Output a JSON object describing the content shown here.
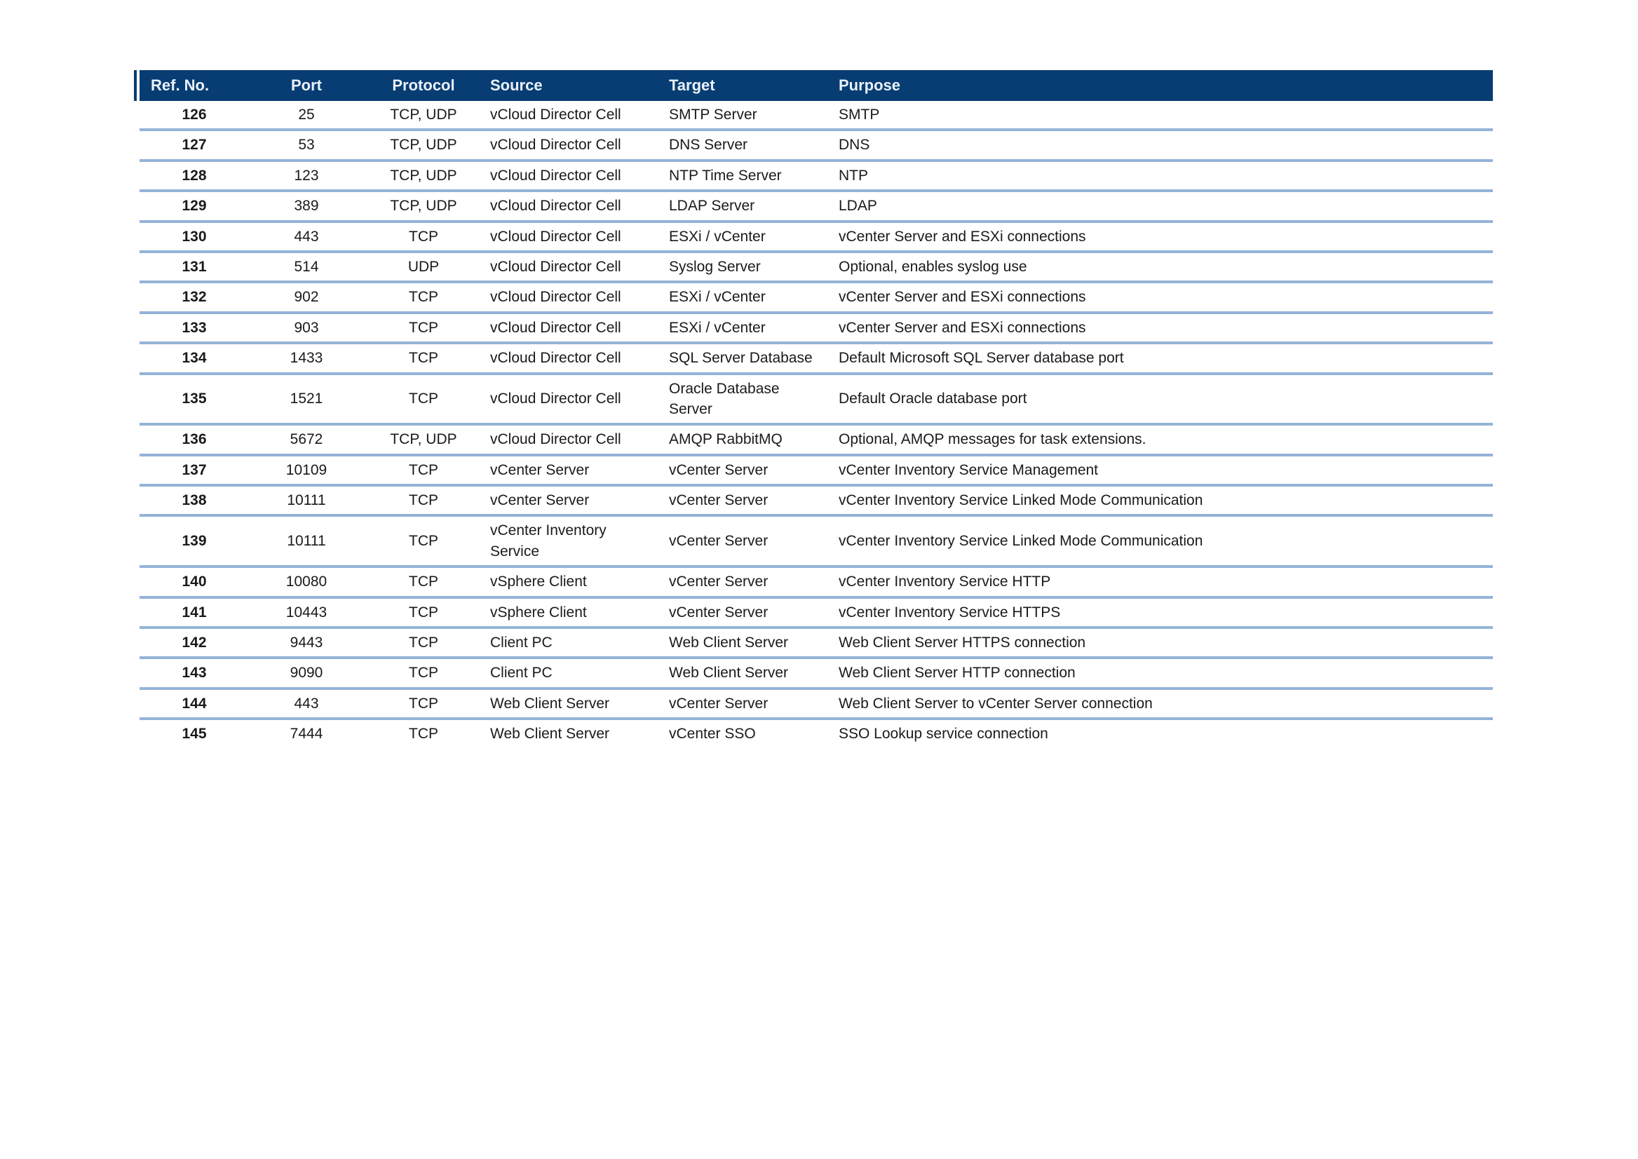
{
  "table": {
    "colors": {
      "header_bg": "#083D73",
      "header_text": "#EAF1F9",
      "separator": "#95B3D7",
      "row_text": "#1A1A1A"
    },
    "columns": [
      {
        "key": "ref",
        "label": "Ref. No."
      },
      {
        "key": "port",
        "label": "Port"
      },
      {
        "key": "protocol",
        "label": "Protocol"
      },
      {
        "key": "source",
        "label": "Source"
      },
      {
        "key": "target",
        "label": "Target"
      },
      {
        "key": "purpose",
        "label": "Purpose"
      }
    ],
    "rows": [
      [
        "126",
        "25",
        "TCP, UDP",
        "vCloud Director Cell",
        "SMTP Server",
        "SMTP"
      ],
      [
        "127",
        "53",
        "TCP, UDP",
        "vCloud Director Cell",
        "DNS Server",
        "DNS"
      ],
      [
        "128",
        "123",
        "TCP, UDP",
        "vCloud Director Cell",
        "NTP Time Server",
        "NTP"
      ],
      [
        "129",
        "389",
        "TCP, UDP",
        "vCloud Director Cell",
        "LDAP Server",
        "LDAP"
      ],
      [
        "130",
        "443",
        "TCP",
        "vCloud Director Cell",
        "ESXi / vCenter",
        "vCenter Server and ESXi connections"
      ],
      [
        "131",
        "514",
        "UDP",
        "vCloud Director Cell",
        "Syslog Server",
        "Optional, enables syslog use"
      ],
      [
        "132",
        "902",
        "TCP",
        "vCloud Director Cell",
        "ESXi / vCenter",
        "vCenter Server and ESXi connections"
      ],
      [
        "133",
        "903",
        "TCP",
        "vCloud Director Cell",
        "ESXi / vCenter",
        "vCenter Server and ESXi connections"
      ],
      [
        "134",
        "1433",
        "TCP",
        "vCloud Director Cell",
        "SQL Server Database",
        "Default Microsoft SQL Server database port"
      ],
      [
        "135",
        "1521",
        "TCP",
        "vCloud Director Cell",
        "Oracle Database Server",
        "Default Oracle database port"
      ],
      [
        "136",
        "5672",
        "TCP, UDP",
        "vCloud Director Cell",
        "AMQP RabbitMQ",
        "Optional, AMQP messages for task extensions."
      ],
      [
        "137",
        "10109",
        "TCP",
        "vCenter Server",
        "vCenter Server",
        "vCenter Inventory Service Management"
      ],
      [
        "138",
        "10111",
        "TCP",
        "vCenter Server",
        "vCenter Server",
        "vCenter Inventory Service Linked Mode Communication"
      ],
      [
        "139",
        "10111",
        "TCP",
        "vCenter Inventory Service",
        "vCenter Server",
        "vCenter Inventory Service Linked Mode Communication"
      ],
      [
        "140",
        "10080",
        "TCP",
        "vSphere Client",
        "vCenter Server",
        "vCenter Inventory Service HTTP"
      ],
      [
        "141",
        "10443",
        "TCP",
        "vSphere Client",
        "vCenter Server",
        "vCenter Inventory Service HTTPS"
      ],
      [
        "142",
        "9443",
        "TCP",
        "Client PC",
        "Web Client Server",
        "Web Client Server HTTPS connection"
      ],
      [
        "143",
        "9090",
        "TCP",
        "Client PC",
        "Web Client Server",
        "Web Client Server HTTP connection"
      ],
      [
        "144",
        "443",
        "TCP",
        "Web Client Server",
        "vCenter Server",
        "Web Client Server to vCenter Server connection"
      ],
      [
        "145",
        "7444",
        "TCP",
        "Web Client Server",
        "vCenter SSO",
        "SSO Lookup service connection"
      ]
    ]
  }
}
